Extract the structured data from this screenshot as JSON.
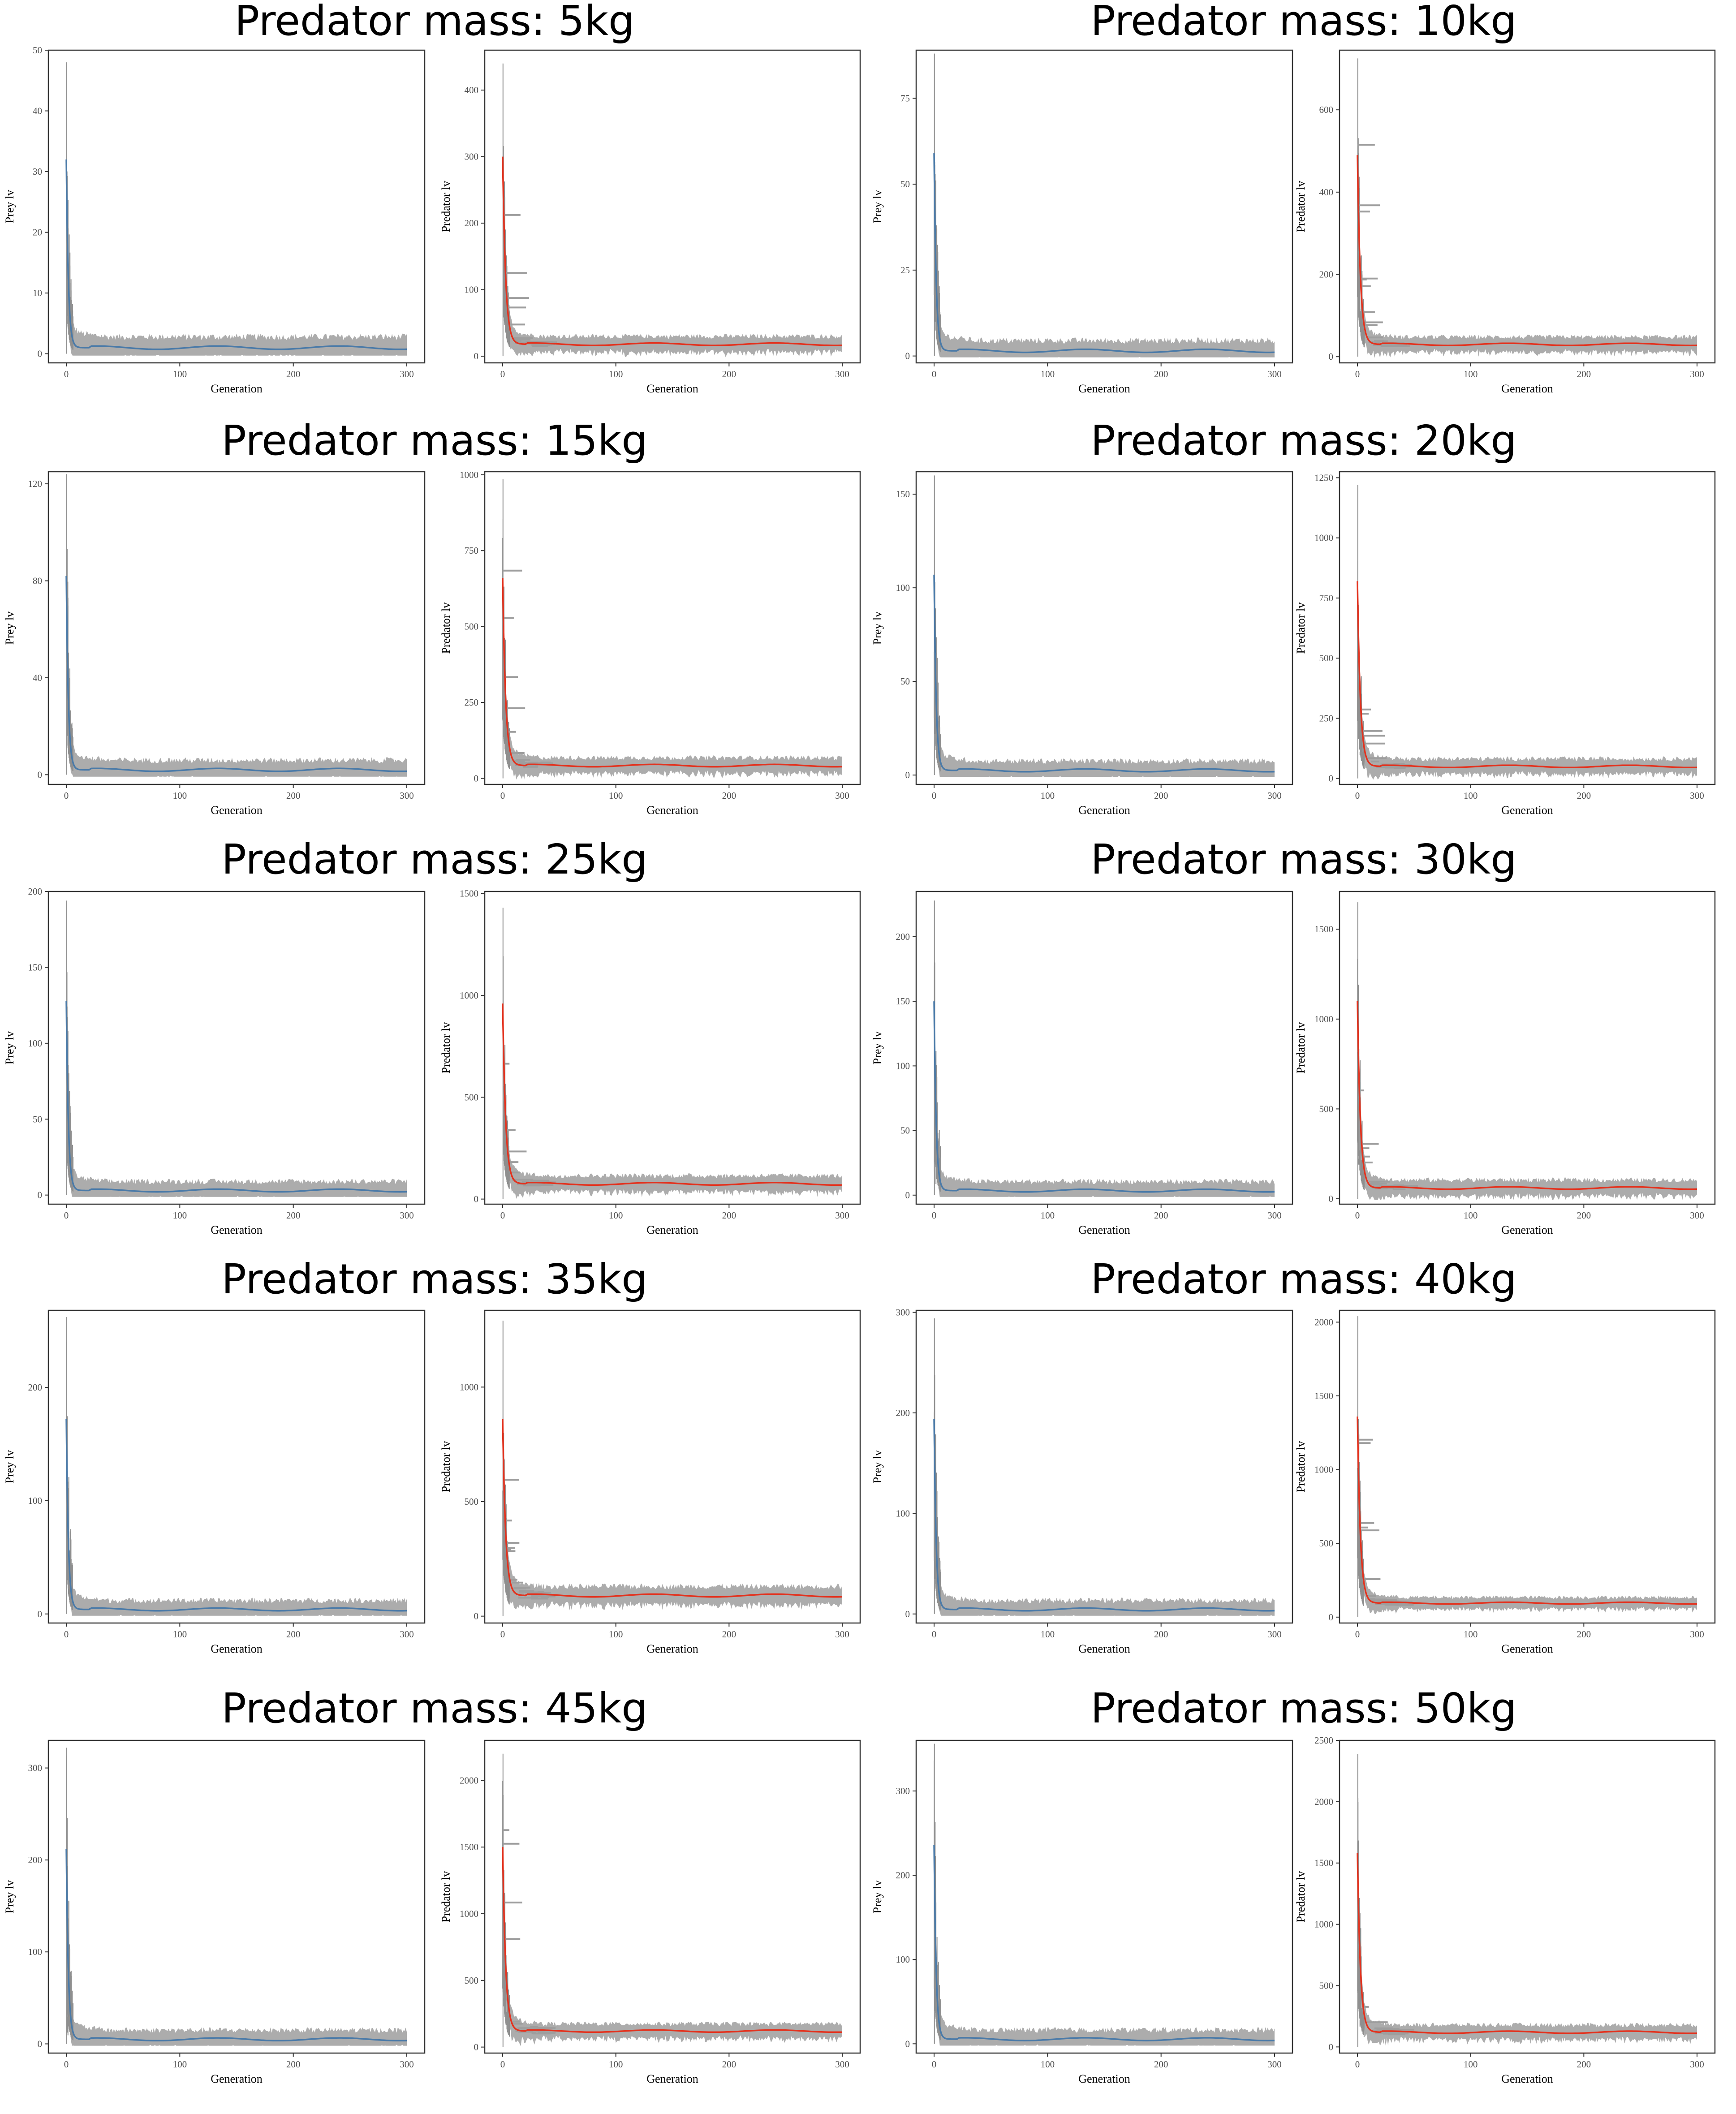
{
  "figure": {
    "colors": {
      "prey_line": "#4a7aa8",
      "predator_line": "#e3321e",
      "band": "#9e9e9e",
      "spike": "#8f8f8f"
    }
  },
  "chart_data": [
    {
      "title": "Predator mass: 5kg",
      "type": "line",
      "x": {
        "label": "Generation",
        "range": [
          0,
          300
        ],
        "ticks": [
          0,
          100,
          200,
          300
        ]
      },
      "prey": {
        "ylabel": "Prey lv",
        "ylim": [
          -1.5,
          50
        ],
        "yticks": [
          0,
          10,
          20,
          30,
          40,
          50
        ],
        "peak": 48,
        "start": 32,
        "level": 1,
        "band": 1.8
      },
      "predator": {
        "ylabel": "Predator lv",
        "ylim": [
          -10,
          460
        ],
        "yticks": [
          0,
          100,
          200,
          300,
          400
        ],
        "peak": 440,
        "start": 300,
        "level": 18,
        "band": 12
      }
    },
    {
      "title": "Predator mass: 10kg",
      "type": "line",
      "x": {
        "label": "Generation",
        "range": [
          0,
          300
        ],
        "ticks": [
          0,
          100,
          200,
          300
        ]
      },
      "prey": {
        "ylabel": "Prey lv",
        "ylim": [
          -2,
          89
        ],
        "yticks": [
          0,
          25,
          50,
          75
        ],
        "peak": 88,
        "start": 59,
        "level": 1.5,
        "band": 3
      },
      "predator": {
        "ylabel": "Predator lv",
        "ylim": [
          -15,
          745
        ],
        "yticks": [
          0,
          200,
          400,
          600
        ],
        "peak": 725,
        "start": 490,
        "level": 30,
        "band": 18
      }
    },
    {
      "title": "Predator mass: 15kg",
      "type": "line",
      "x": {
        "label": "Generation",
        "range": [
          0,
          300
        ],
        "ticks": [
          0,
          100,
          200,
          300
        ]
      },
      "prey": {
        "ylabel": "Prey lv",
        "ylim": [
          -4,
          125
        ],
        "yticks": [
          0,
          40,
          80,
          120
        ],
        "peak": 124,
        "start": 82,
        "level": 2,
        "band": 4
      },
      "predator": {
        "ylabel": "Predator lv",
        "ylim": [
          -20,
          1010
        ],
        "yticks": [
          0,
          250,
          500,
          750,
          1000
        ],
        "peak": 985,
        "start": 660,
        "level": 42,
        "band": 26
      }
    },
    {
      "title": "Predator mass: 20kg",
      "type": "line",
      "x": {
        "label": "Generation",
        "range": [
          0,
          300
        ],
        "ticks": [
          0,
          100,
          200,
          300
        ]
      },
      "prey": {
        "ylabel": "Prey lv",
        "ylim": [
          -5,
          162
        ],
        "yticks": [
          0,
          50,
          100,
          150
        ],
        "peak": 160,
        "start": 107,
        "level": 2.5,
        "band": 5
      },
      "predator": {
        "ylabel": "Predator lv",
        "ylim": [
          -25,
          1275
        ],
        "yticks": [
          0,
          250,
          500,
          750,
          1000,
          1250
        ],
        "peak": 1220,
        "start": 820,
        "level": 50,
        "band": 32
      }
    },
    {
      "title": "Predator mass: 25kg",
      "type": "line",
      "x": {
        "label": "Generation",
        "range": [
          0,
          300
        ],
        "ticks": [
          0,
          100,
          200,
          300
        ]
      },
      "prey": {
        "ylabel": "Prey lv",
        "ylim": [
          -6,
          200
        ],
        "yticks": [
          0,
          50,
          100,
          150,
          200
        ],
        "peak": 194,
        "start": 128,
        "level": 3,
        "band": 6
      },
      "predator": {
        "ylabel": "Predator lv",
        "ylim": [
          -25,
          1510
        ],
        "yticks": [
          0,
          500,
          1000,
          1500
        ],
        "peak": 1430,
        "start": 960,
        "level": 75,
        "band": 40
      }
    },
    {
      "title": "Predator mass: 30kg",
      "type": "line",
      "x": {
        "label": "Generation",
        "range": [
          0,
          300
        ],
        "ticks": [
          0,
          100,
          200,
          300
        ]
      },
      "prey": {
        "ylabel": "Prey lv",
        "ylim": [
          -7,
          235
        ],
        "yticks": [
          0,
          50,
          100,
          150,
          200
        ],
        "peak": 228,
        "start": 150,
        "level": 3.5,
        "band": 7
      },
      "predator": {
        "ylabel": "Predator lv",
        "ylim": [
          -30,
          1710
        ],
        "yticks": [
          0,
          500,
          1000,
          1500
        ],
        "peak": 1650,
        "start": 1100,
        "level": 60,
        "band": 45
      }
    },
    {
      "title": "Predator mass: 35kg",
      "type": "line",
      "x": {
        "label": "Generation",
        "range": [
          0,
          300
        ],
        "ticks": [
          0,
          100,
          200,
          300
        ]
      },
      "prey": {
        "ylabel": "Prey lv",
        "ylim": [
          -8,
          268
        ],
        "yticks": [
          0,
          100,
          200
        ],
        "peak": 262,
        "start": 172,
        "level": 4,
        "band": 8
      },
      "predator": {
        "ylabel": "Predator lv",
        "ylim": [
          -30,
          1335
        ],
        "yticks": [
          0,
          500,
          1000
        ],
        "peak": 1290,
        "start": 860,
        "level": 90,
        "band": 40
      }
    },
    {
      "title": "Predator mass: 40kg",
      "type": "line",
      "x": {
        "label": "Generation",
        "range": [
          0,
          300
        ],
        "ticks": [
          0,
          100,
          200,
          300
        ]
      },
      "prey": {
        "ylabel": "Prey lv",
        "ylim": [
          -9,
          302
        ],
        "yticks": [
          0,
          100,
          200,
          300
        ],
        "peak": 294,
        "start": 194,
        "level": 4.5,
        "band": 9
      },
      "predator": {
        "ylabel": "Predator lv",
        "ylim": [
          -40,
          2080
        ],
        "yticks": [
          0,
          500,
          1000,
          1500,
          2000
        ],
        "peak": 2040,
        "start": 1360,
        "level": 95,
        "band": 40
      }
    },
    {
      "title": "Predator mass: 45kg",
      "type": "line",
      "x": {
        "label": "Generation",
        "range": [
          0,
          300
        ],
        "ticks": [
          0,
          100,
          200,
          300
        ]
      },
      "prey": {
        "ylabel": "Prey lv",
        "ylim": [
          -10,
          330
        ],
        "yticks": [
          0,
          100,
          200,
          300
        ],
        "peak": 322,
        "start": 212,
        "level": 5,
        "band": 10
      },
      "predator": {
        "ylabel": "Predator lv",
        "ylim": [
          -45,
          2300
        ],
        "yticks": [
          0,
          500,
          1000,
          1500,
          2000
        ],
        "peak": 2200,
        "start": 1500,
        "level": 120,
        "band": 55
      }
    },
    {
      "title": "Predator mass: 50kg",
      "type": "line",
      "x": {
        "label": "Generation",
        "range": [
          0,
          300
        ],
        "ticks": [
          0,
          100,
          200,
          300
        ]
      },
      "prey": {
        "ylabel": "Prey lv",
        "ylim": [
          -11,
          360
        ],
        "yticks": [
          0,
          100,
          200,
          300
        ],
        "peak": 356,
        "start": 236,
        "level": 5.5,
        "band": 11
      },
      "predator": {
        "ylabel": "Predator lv",
        "ylim": [
          -50,
          2500
        ],
        "yticks": [
          0,
          500,
          1000,
          1500,
          2000,
          2500
        ],
        "peak": 2390,
        "start": 1580,
        "level": 120,
        "band": 60
      }
    }
  ]
}
